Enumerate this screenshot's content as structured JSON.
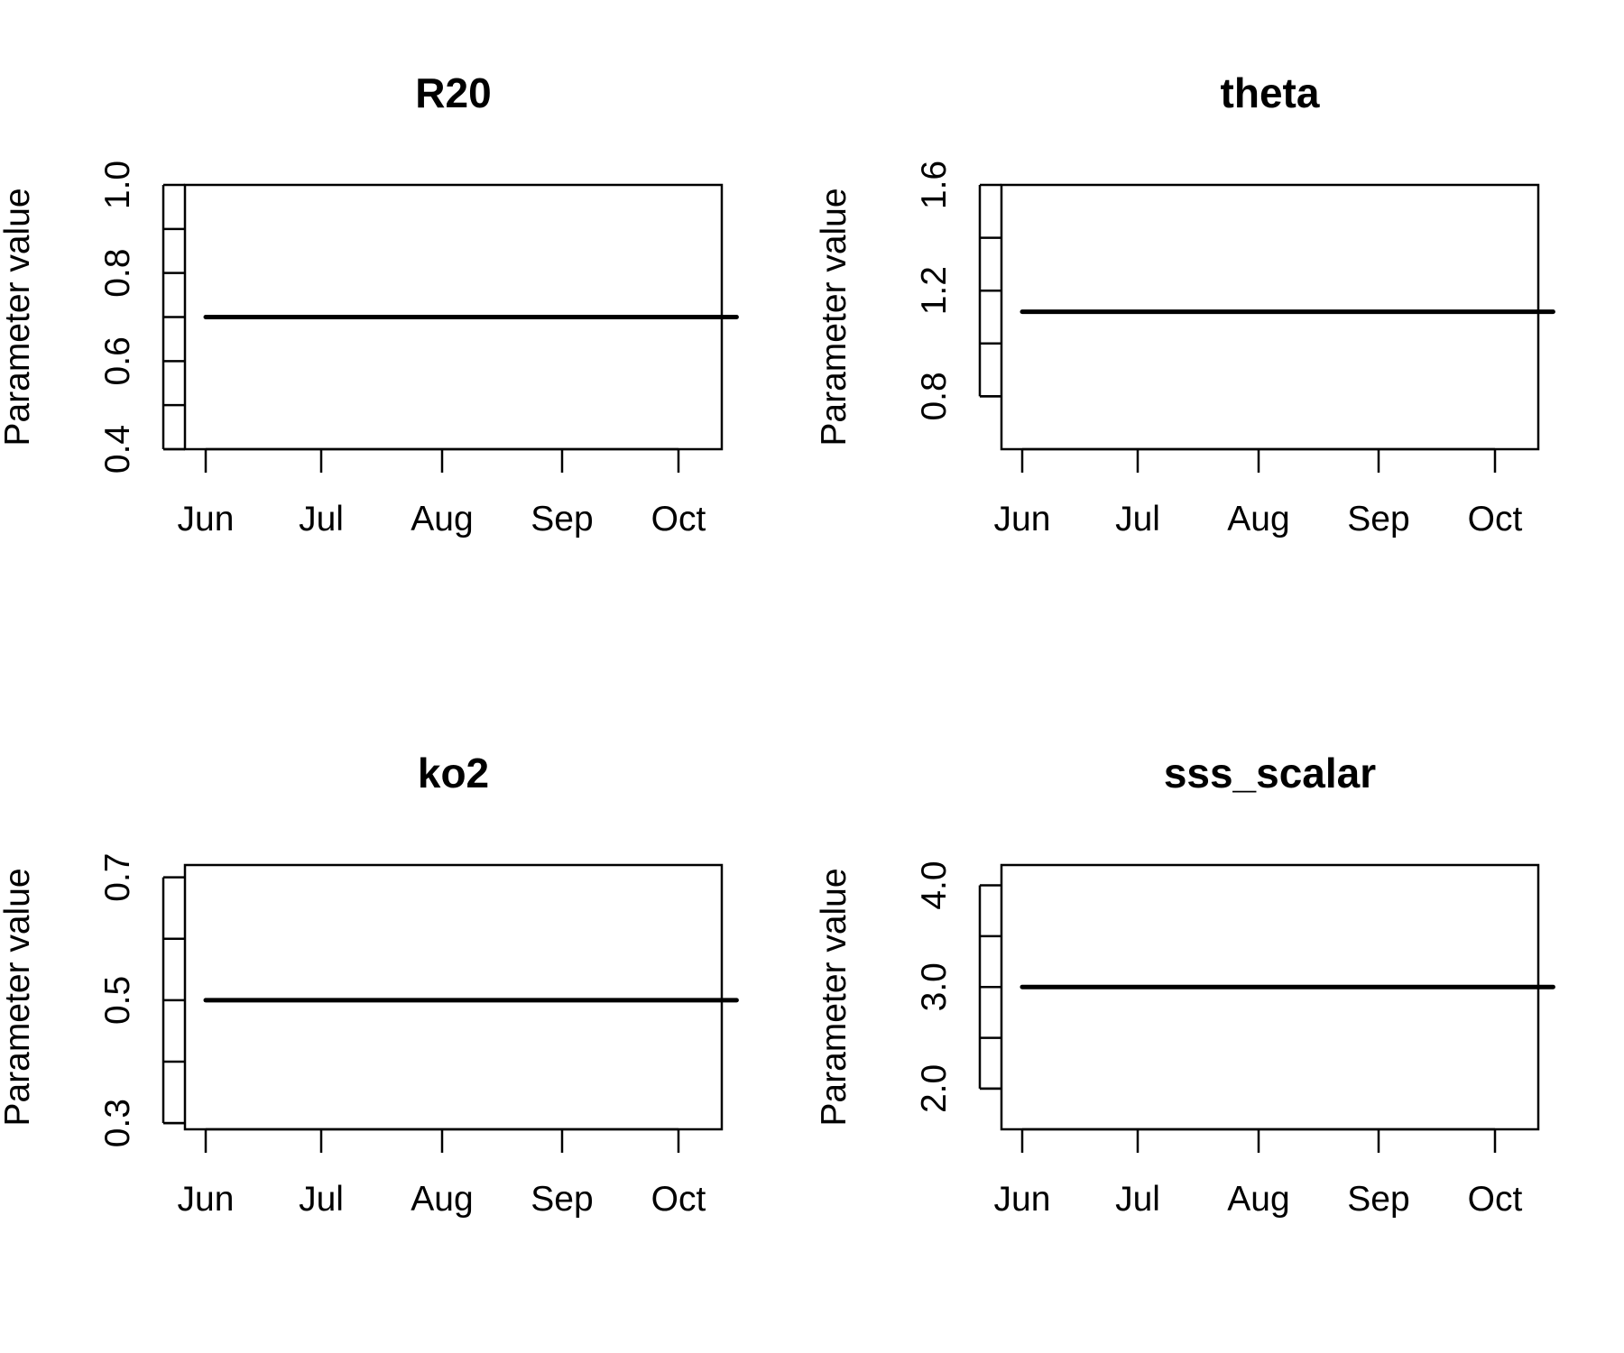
{
  "chart_data": [
    {
      "type": "line",
      "title": "R20",
      "xlabel": "",
      "ylabel": "Parameter value",
      "x_ticks": [
        "Jun",
        "Jul",
        "Aug",
        "Sep",
        "Oct"
      ],
      "ylim": [
        0.4,
        1.0
      ],
      "y_ticks": [
        0.4,
        0.5,
        0.6,
        0.7,
        0.8,
        0.9,
        1.0
      ],
      "y_tick_labels": [
        "0.4",
        "",
        "0.6",
        "",
        "0.8",
        "",
        "1.0"
      ],
      "x": [
        "2000-06-01",
        "2000-10-16"
      ],
      "values": [
        0.7,
        0.7
      ]
    },
    {
      "type": "line",
      "title": "theta",
      "xlabel": "",
      "ylabel": "Parameter value",
      "x_ticks": [
        "Jun",
        "Jul",
        "Aug",
        "Sep",
        "Oct"
      ],
      "ylim": [
        0.6,
        1.6
      ],
      "y_ticks": [
        0.8,
        1.0,
        1.2,
        1.4,
        1.6
      ],
      "y_tick_labels": [
        "0.8",
        "",
        "1.2",
        "",
        "1.6"
      ],
      "x": [
        "2000-06-01",
        "2000-10-16"
      ],
      "values": [
        1.12,
        1.12
      ]
    },
    {
      "type": "line",
      "title": "ko2",
      "xlabel": "",
      "ylabel": "Parameter value",
      "x_ticks": [
        "Jun",
        "Jul",
        "Aug",
        "Sep",
        "Oct"
      ],
      "ylim": [
        0.29,
        0.72
      ],
      "y_ticks": [
        0.3,
        0.4,
        0.5,
        0.6,
        0.7
      ],
      "y_tick_labels": [
        "0.3",
        "",
        "0.5",
        "",
        "0.7"
      ],
      "x": [
        "2000-06-01",
        "2000-10-16"
      ],
      "values": [
        0.5,
        0.5
      ]
    },
    {
      "type": "line",
      "title": "sss_scalar",
      "xlabel": "",
      "ylabel": "Parameter value",
      "x_ticks": [
        "Jun",
        "Jul",
        "Aug",
        "Sep",
        "Oct"
      ],
      "ylim": [
        1.6,
        4.2
      ],
      "y_ticks": [
        2.0,
        2.5,
        3.0,
        3.5,
        4.0
      ],
      "y_tick_labels": [
        "2.0",
        "",
        "3.0",
        "",
        "4.0"
      ],
      "x": [
        "2000-06-01",
        "2000-10-16"
      ],
      "values": [
        3.0,
        3.0
      ]
    }
  ]
}
